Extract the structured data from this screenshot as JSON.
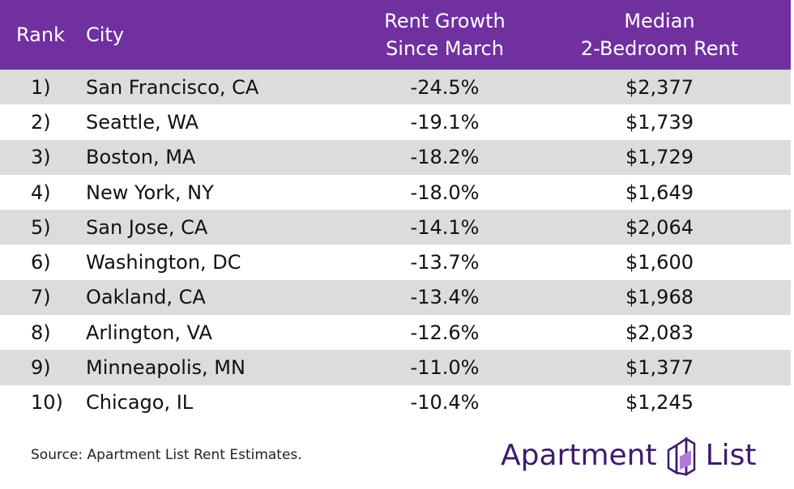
{
  "header": {
    "rank": "Rank",
    "city": "City",
    "growth_line1": "Rent Growth",
    "growth_line2": "Since March",
    "rent_line1": "Median",
    "rent_line2": "2-Bedroom Rent"
  },
  "rows": [
    {
      "rank": "1)",
      "city": "San Francisco, CA",
      "growth": "-24.5%",
      "rent": "$2,377"
    },
    {
      "rank": "2)",
      "city": "Seattle, WA",
      "growth": "-19.1%",
      "rent": "$1,739"
    },
    {
      "rank": "3)",
      "city": "Boston, MA",
      "growth": "-18.2%",
      "rent": "$1,729"
    },
    {
      "rank": "4)",
      "city": "New York, NY",
      "growth": "-18.0%",
      "rent": "$1,649"
    },
    {
      "rank": "5)",
      "city": "San Jose, CA",
      "growth": "-14.1%",
      "rent": "$2,064"
    },
    {
      "rank": "6)",
      "city": "Washington, DC",
      "growth": "-13.7%",
      "rent": "$1,600"
    },
    {
      "rank": "7)",
      "city": "Oakland, CA",
      "growth": "-13.4%",
      "rent": "$1,968"
    },
    {
      "rank": "8)",
      "city": "Arlington, VA",
      "growth": "-12.6%",
      "rent": "$2,083"
    },
    {
      "rank": "9)",
      "city": "Minneapolis, MN",
      "growth": "-11.0%",
      "rent": "$1,377"
    },
    {
      "rank": "10)",
      "city": "Chicago, IL",
      "growth": "-10.4%",
      "rent": "$1,245"
    }
  ],
  "footer": {
    "source": "Source: Apartment List Rent Estimates.",
    "logo_word1": "Apartment",
    "logo_word2": "List",
    "logo_icon": "building-logo-icon"
  },
  "colors": {
    "header_bg": "#7030a0",
    "row_stripe": "#dcdcdc",
    "logo": "#3d1a6e"
  }
}
